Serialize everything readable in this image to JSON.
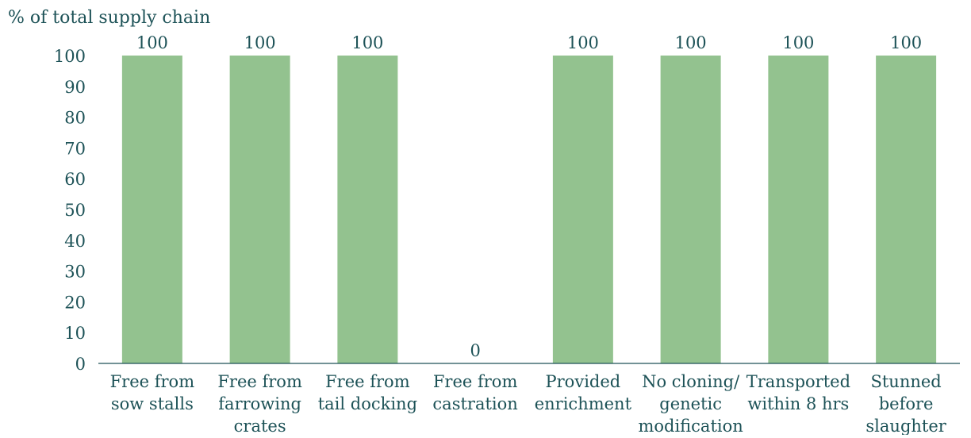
{
  "chart_data": {
    "type": "bar",
    "ylabel": "% of total supply chain",
    "categories": [
      [
        "Free from",
        "sow stalls"
      ],
      [
        "Free from",
        "farrowing",
        "crates"
      ],
      [
        "Free from",
        "tail docking"
      ],
      [
        "Free from",
        "castration"
      ],
      [
        "Provided",
        "enrichment"
      ],
      [
        "No cloning/",
        "genetic",
        "modification"
      ],
      [
        "Transported",
        "within 8 hrs"
      ],
      [
        "Stunned",
        "before",
        "slaughter"
      ]
    ],
    "values": [
      100,
      100,
      100,
      0,
      100,
      100,
      100,
      100
    ],
    "data_labels": [
      "100",
      "100",
      "100",
      "0",
      "100",
      "100",
      "100",
      "100"
    ],
    "ylim": [
      0,
      100
    ],
    "yticks": [
      0,
      10,
      20,
      30,
      40,
      50,
      60,
      70,
      80,
      90,
      100
    ],
    "grid": false,
    "legend": "none",
    "colors": {
      "bar": "#93c28f",
      "text": "#1d5257",
      "axis": "#1d5257"
    }
  }
}
